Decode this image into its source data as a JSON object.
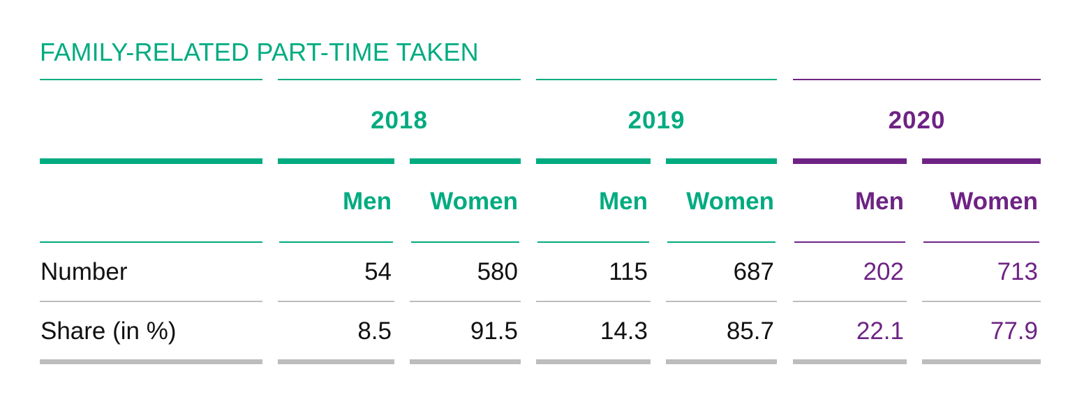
{
  "chart_data": {
    "type": "table",
    "title": "FAMILY-RELATED PART-TIME TAKEN",
    "columns": [
      {
        "year": "2018",
        "gender": "Men"
      },
      {
        "year": "2018",
        "gender": "Women"
      },
      {
        "year": "2019",
        "gender": "Men"
      },
      {
        "year": "2019",
        "gender": "Women"
      },
      {
        "year": "2020",
        "gender": "Men"
      },
      {
        "year": "2020",
        "gender": "Women"
      }
    ],
    "years": [
      "2018",
      "2019",
      "2020"
    ],
    "rows": [
      {
        "label": "Number",
        "values": [
          "54",
          "580",
          "115",
          "687",
          "202",
          "713"
        ]
      },
      {
        "label": "Share (in %)",
        "values": [
          "8.5",
          "91.5",
          "14.3",
          "85.7",
          "22.1",
          "77.9"
        ]
      }
    ]
  },
  "colors": {
    "green": "#00ab80",
    "purple": "#6e2384",
    "gray_rule": "#bdbdbd",
    "text": "#111111"
  }
}
